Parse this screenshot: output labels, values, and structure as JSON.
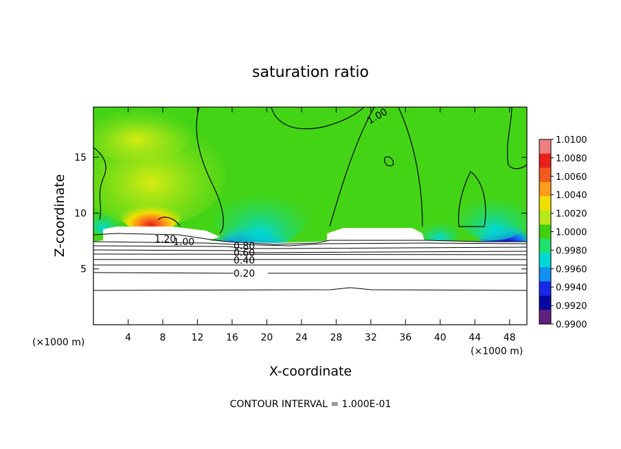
{
  "chart_data": {
    "type": "heatmap",
    "title": "saturation ratio",
    "xlabel": "X-coordinate",
    "ylabel": "Z-coordinate",
    "x_unit_label": "(×1000 m)",
    "x_unit_label_right": "(×1000 m)",
    "footer": "CONTOUR INTERVAL = 1.000E-01",
    "xlim": [
      0,
      50
    ],
    "ylim": [
      0,
      19.5
    ],
    "x_ticks": [
      "4",
      "8",
      "12",
      "16",
      "20",
      "24",
      "28",
      "32",
      "36",
      "40",
      "44",
      "48"
    ],
    "y_ticks": [
      "5",
      "10",
      "15"
    ],
    "colorbar": {
      "range": [
        0.99,
        1.01
      ],
      "ticks": [
        "1.0100",
        "1.0080",
        "1.0060",
        "1.0040",
        "1.0020",
        "1.0000",
        "0.9980",
        "0.9960",
        "0.9940",
        "0.9920",
        "0.9900"
      ],
      "colors": [
        "#f08080",
        "#e8201c",
        "#f05a1c",
        "#ff9c1c",
        "#f0e000",
        "#b8e81c",
        "#40d010",
        "#20e070",
        "#00d8d8",
        "#1090f0",
        "#1828e8",
        "#0808a0",
        "#602080"
      ]
    },
    "contour_labels": [
      "1.00",
      "1.20",
      "1.00",
      "0.80",
      "0.60",
      "0.40",
      "0.20"
    ],
    "field_description": "Green ~1.000 background aloft; yellow/red maxima above cloud tops near x=4-9 km, z=9-12; blue minima near x=16-20 and 43-48 km at z~8; saturation ratio contours 0.2-1.2 below z~8 km"
  }
}
